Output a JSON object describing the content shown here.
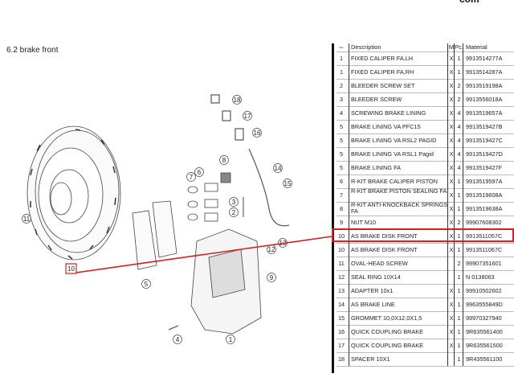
{
  "header": {
    "site_text": "com"
  },
  "section_title": "6.2  brake front",
  "highlight_color": "#d42020",
  "table": {
    "columns": {
      "pos": "Item",
      "description": "Description",
      "m": "M",
      "pc": "Pc.",
      "material": "Material"
    },
    "rows": [
      {
        "pos": "1",
        "description": "FIXED CALIPER FA,LH",
        "m": "X",
        "pc": "1",
        "material": "9913514277A"
      },
      {
        "pos": "1",
        "description": "FIXED CALIPER FA,RH",
        "m": "X",
        "pc": "1",
        "material": "9913514287A"
      },
      {
        "pos": "2",
        "description": "BLEEDER SCREW SET",
        "m": "X",
        "pc": "2",
        "material": "9913519198A"
      },
      {
        "pos": "3",
        "description": "BLEEDER SCREW",
        "m": "X",
        "pc": "2",
        "material": "9913556018A"
      },
      {
        "pos": "4",
        "description": "SCREWING BRAKE LINING",
        "m": "X",
        "pc": "4",
        "material": "9913519657A"
      },
      {
        "pos": "5",
        "description": "BRAKE LINING VA PFC15",
        "m": "X",
        "pc": "4",
        "material": "9913519427B"
      },
      {
        "pos": "5",
        "description": "BRAKE LINING VA RSL2 PAGID",
        "m": "X",
        "pc": "4",
        "material": "9913519427C"
      },
      {
        "pos": "5",
        "description": "BRAKE LINING VA RSL1 Pagid",
        "m": "X",
        "pc": "4",
        "material": "9913519427D"
      },
      {
        "pos": "5",
        "description": "BRAKE LINING FA",
        "m": "X",
        "pc": "4",
        "material": "9913519427F"
      },
      {
        "pos": "6",
        "description": "R-KIT BRAKE CALIPER PISTON",
        "m": "X",
        "pc": "1",
        "material": "9913519597A"
      },
      {
        "pos": "7",
        "description": "R-KIT BRAKE PISTON SEALING FA",
        "m": "X",
        "pc": "1",
        "material": "9913519608A"
      },
      {
        "pos": "8",
        "description": "R-KIT ANTI-KNOCKBACK SPRINGS FA",
        "m": "X",
        "pc": "1",
        "material": "9913519638A"
      },
      {
        "pos": "9",
        "description": "NUT M10",
        "m": "X",
        "pc": "2",
        "material": "99907608302"
      },
      {
        "pos": "10",
        "description": "AS BRAKE DISK FRONT",
        "m": "X",
        "pc": "1",
        "material": "9913511057C",
        "highlighted": true
      },
      {
        "pos": "10",
        "description": "AS BRAKE DISK FRONT",
        "m": "X",
        "pc": "1",
        "material": "9913511067C"
      },
      {
        "pos": "11",
        "description": "OVAL-HEAD SCREW",
        "m": "",
        "pc": "2",
        "material": "99907351601"
      },
      {
        "pos": "12",
        "description": "SEAL RING 10X14",
        "m": "",
        "pc": "1",
        "material": "N  0138063"
      },
      {
        "pos": "13",
        "description": "ADAPTER 10x1",
        "m": "X",
        "pc": "1",
        "material": "99910502602"
      },
      {
        "pos": "14",
        "description": "AS BRAKE LINE",
        "m": "X",
        "pc": "1",
        "material": "9963555849D"
      },
      {
        "pos": "15",
        "description": "GROMMET 10,0X12,0X1,5",
        "m": "X",
        "pc": "1",
        "material": "99970327940"
      },
      {
        "pos": "16",
        "description": "QUICK COUPLING BRAKE",
        "m": "X",
        "pc": "1",
        "material": "9R635561400"
      },
      {
        "pos": "17",
        "description": "QUICK COUPLING BRAKE",
        "m": "X",
        "pc": "1",
        "material": "9R635561500"
      },
      {
        "pos": "18",
        "description": "SPACER 10X1",
        "m": "",
        "pc": "1",
        "material": "9R435561100"
      }
    ]
  },
  "diagram": {
    "callouts": [
      "18",
      "17",
      "16",
      "8",
      "7",
      "6",
      "14",
      "15",
      "3",
      "2",
      "11",
      "13",
      "12",
      "9",
      "10",
      "5",
      "4",
      "1"
    ]
  }
}
